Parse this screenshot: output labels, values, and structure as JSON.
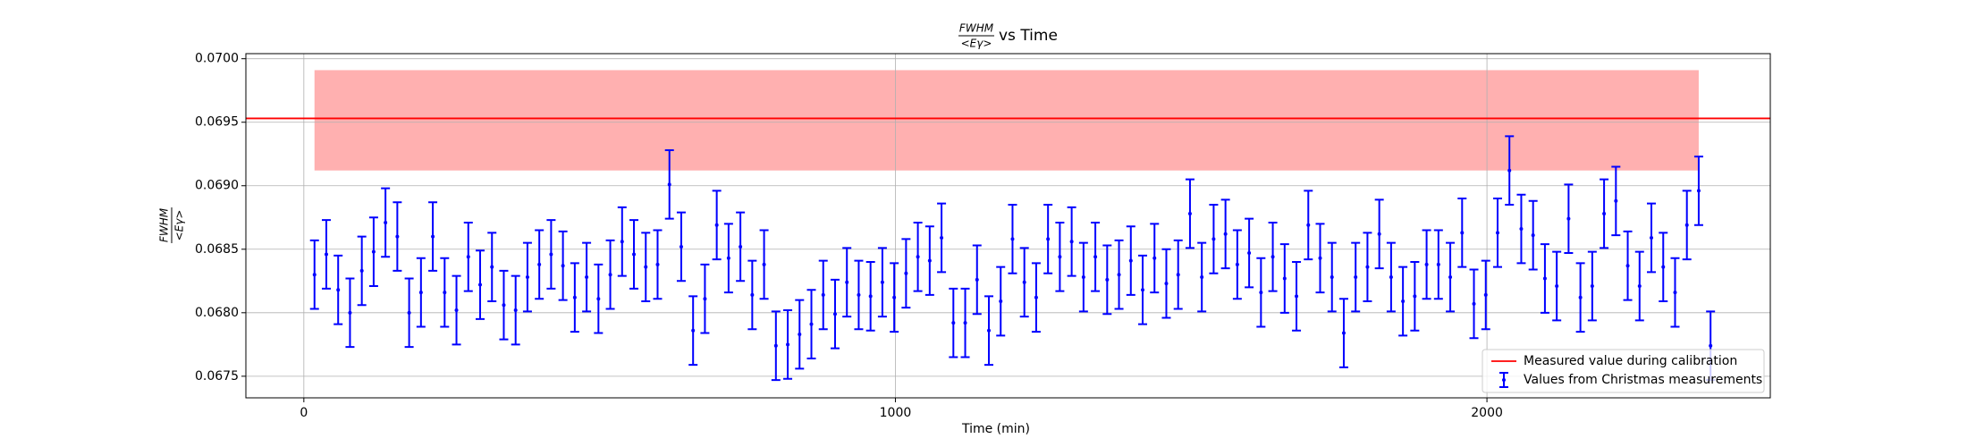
{
  "chart_data": {
    "type": "errorbar",
    "title": {
      "numerator": "FWHM",
      "denominator": "<Eγ>",
      "text": "vs Time"
    },
    "xlabel": "Time (min)",
    "ylabel": {
      "numerator": "FWHM",
      "denominator": "<Eγ>"
    },
    "xlim": [
      -98,
      2479
    ],
    "ylim": [
      0.06733,
      0.07004
    ],
    "xticks": [
      0,
      1000,
      2000
    ],
    "yticks": [
      0.0675,
      {
        "value": 0.068,
        "label": "0.0680"
      },
      0.0685,
      {
        "value": 0.069,
        "label": "0.0690"
      },
      0.0695,
      {
        "value": 0.07,
        "label": "0.0700"
      }
    ],
    "grid": true,
    "legend": "lower right",
    "band": {
      "x": [
        18,
        2358
      ],
      "y": [
        0.06912,
        0.06991
      ],
      "color": "#ffb0b0"
    },
    "series": [
      {
        "name": "Measured value during calibration",
        "type": "hline",
        "color": "#ff0000",
        "value": 0.06953
      },
      {
        "name": "Values from Christmas measurements",
        "type": "errorbar",
        "color": "#0000ff",
        "error": 0.00027,
        "x": [
          18,
          38,
          58,
          78,
          98,
          118,
          138,
          158,
          178,
          198,
          218,
          238,
          258,
          278,
          298,
          318,
          338,
          358,
          378,
          398,
          418,
          438,
          458,
          478,
          498,
          518,
          538,
          558,
          578,
          598,
          618,
          638,
          658,
          678,
          698,
          718,
          738,
          758,
          778,
          798,
          818,
          838,
          858,
          878,
          898,
          918,
          938,
          958,
          978,
          998,
          1018,
          1038,
          1058,
          1078,
          1098,
          1118,
          1138,
          1158,
          1178,
          1198,
          1218,
          1238,
          1258,
          1278,
          1298,
          1318,
          1338,
          1358,
          1378,
          1398,
          1418,
          1438,
          1458,
          1478,
          1498,
          1518,
          1538,
          1558,
          1578,
          1598,
          1618,
          1638,
          1658,
          1678,
          1698,
          1718,
          1738,
          1758,
          1778,
          1798,
          1818,
          1838,
          1858,
          1878,
          1898,
          1918,
          1938,
          1958,
          1978,
          1998,
          2018,
          2038,
          2058,
          2078,
          2098,
          2118,
          2138,
          2158,
          2178,
          2198,
          2218,
          2238,
          2258,
          2278,
          2298,
          2318,
          2338,
          2358,
          2378
        ],
        "values": [
          0.0683,
          0.06846,
          0.06818,
          0.068,
          0.06833,
          0.06848,
          0.06871,
          0.0686,
          0.068,
          0.06816,
          0.0686,
          0.06816,
          0.06802,
          0.06844,
          0.06822,
          0.06836,
          0.06806,
          0.06802,
          0.06828,
          0.06838,
          0.06846,
          0.06837,
          0.06812,
          0.06828,
          0.06811,
          0.0683,
          0.06856,
          0.06846,
          0.06836,
          0.06838,
          0.06901,
          0.06852,
          0.06786,
          0.06811,
          0.06869,
          0.06843,
          0.06852,
          0.06814,
          0.06838,
          0.06774,
          0.06775,
          0.06783,
          0.06791,
          0.06814,
          0.06799,
          0.06824,
          0.06814,
          0.06813,
          0.06824,
          0.06812,
          0.06831,
          0.06844,
          0.06841,
          0.06859,
          0.06792,
          0.06792,
          0.06826,
          0.06786,
          0.06809,
          0.06858,
          0.06824,
          0.06812,
          0.06858,
          0.06844,
          0.06856,
          0.06828,
          0.06844,
          0.06826,
          0.0683,
          0.06841,
          0.06818,
          0.06843,
          0.06823,
          0.0683,
          0.06878,
          0.06828,
          0.06858,
          0.06862,
          0.06838,
          0.06847,
          0.06816,
          0.06844,
          0.06827,
          0.06813,
          0.06869,
          0.06843,
          0.06828,
          0.06784,
          0.06828,
          0.06836,
          0.06862,
          0.06828,
          0.06809,
          0.06813,
          0.06838,
          0.06838,
          0.06828,
          0.06863,
          0.06807,
          0.06814,
          0.06863,
          0.06912,
          0.06866,
          0.06861,
          0.06827,
          0.06821,
          0.06874,
          0.06812,
          0.06821,
          0.06878,
          0.06888,
          0.06837,
          0.06821,
          0.06859,
          0.06836,
          0.06816,
          0.06869,
          0.06896,
          0.06774
        ]
      }
    ]
  }
}
